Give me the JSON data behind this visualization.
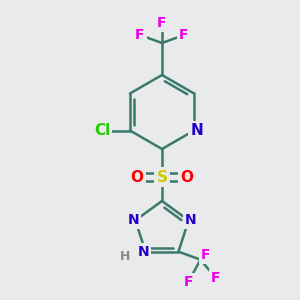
{
  "background_color": "#e8eaec",
  "bond_color": "#3a7a68",
  "bond_width": 1.8,
  "atom_colors": {
    "F": "#e800e8",
    "N": "#2200cc",
    "Cl": "#22cc00",
    "S": "#cccc00",
    "O": "#ff0000",
    "H": "#888888",
    "C": "#3a7a68"
  },
  "font_size": 10,
  "figsize": [
    3.0,
    3.0
  ],
  "dpi": 100
}
